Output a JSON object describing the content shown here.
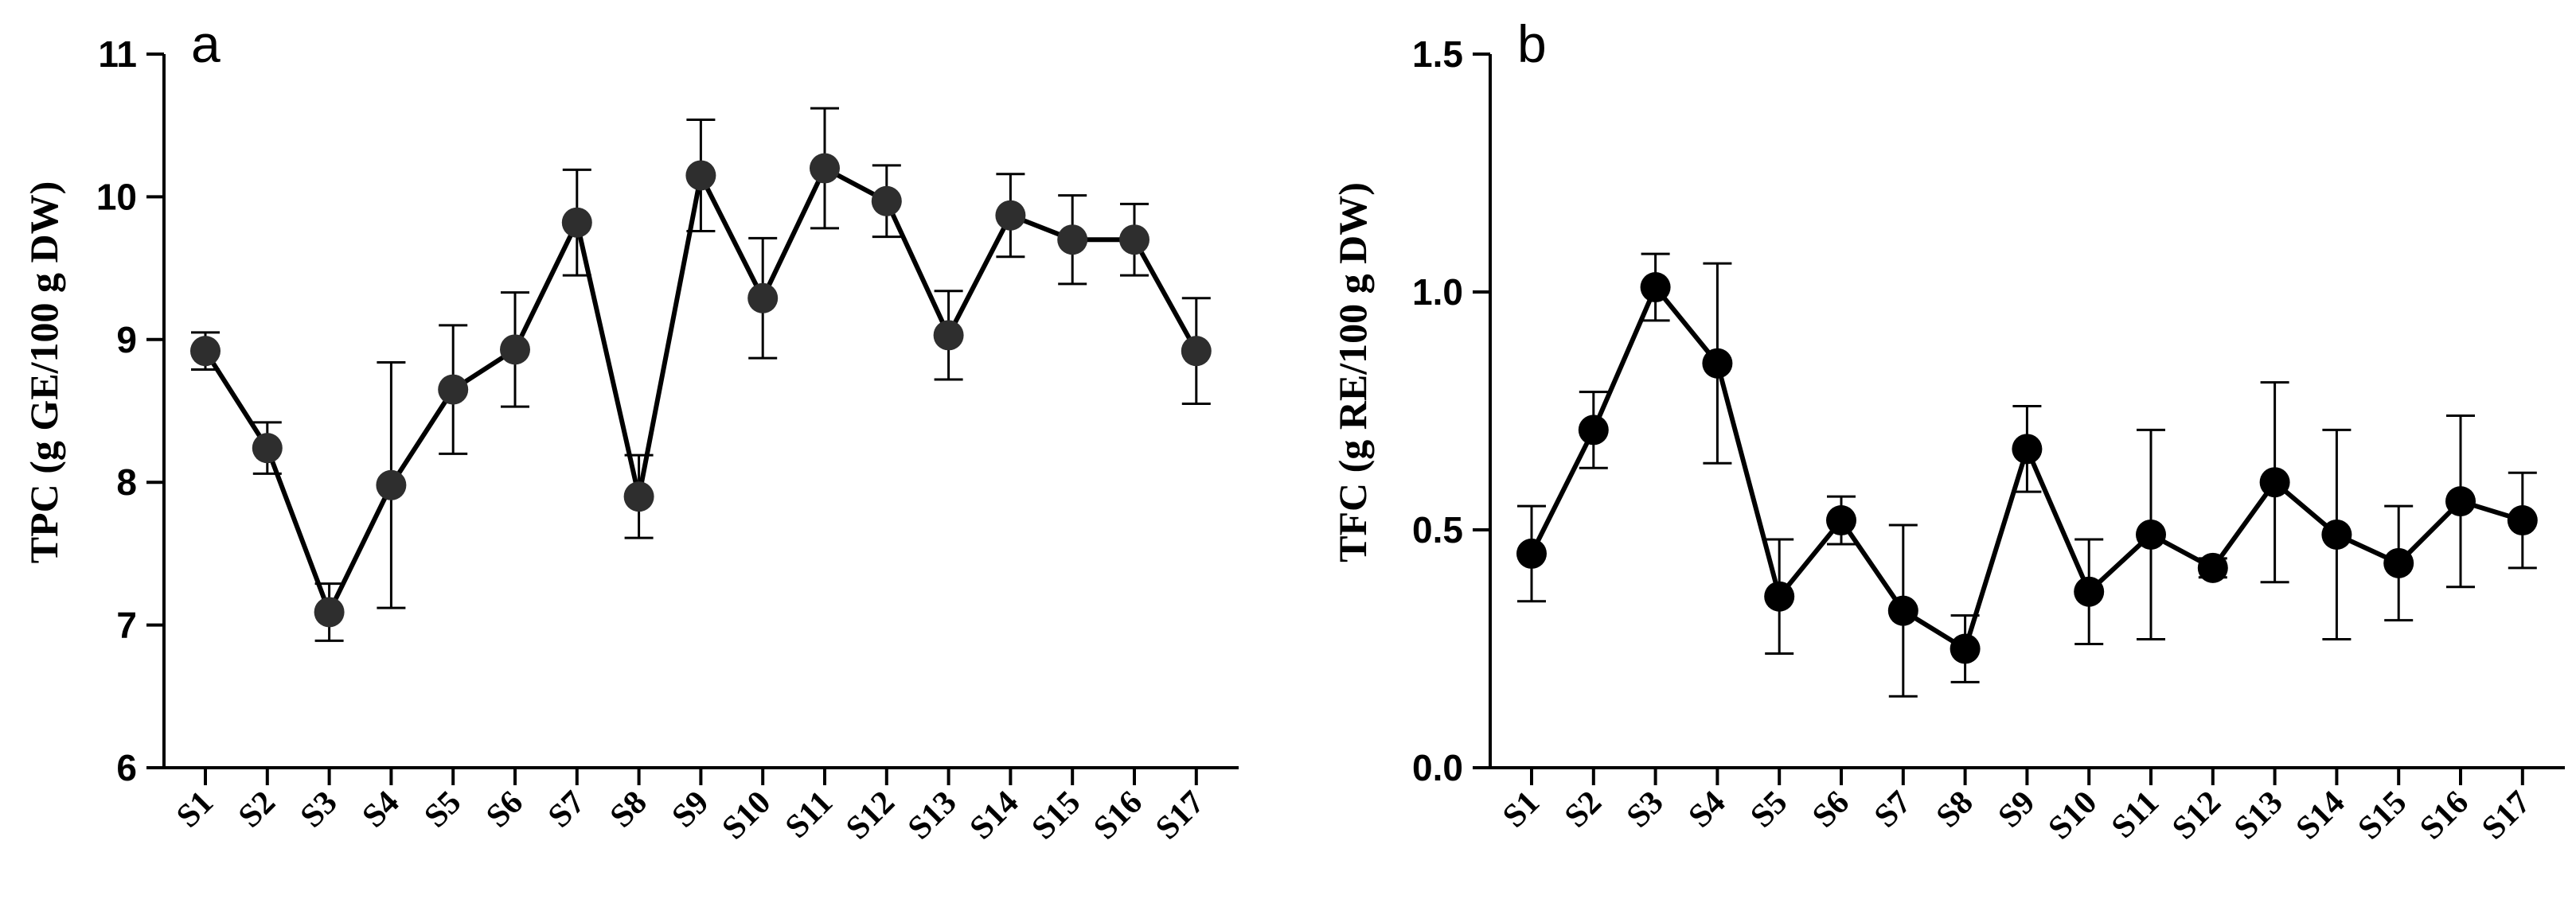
{
  "chart_data": [
    {
      "type": "line",
      "panel_label": "a",
      "title": "",
      "xlabel": "",
      "ylabel": "TPC (g GE/100 g DW)",
      "ylim": [
        6,
        11
      ],
      "yticks": [
        "6",
        "7",
        "8",
        "9",
        "10",
        "11"
      ],
      "categories": [
        "S1",
        "S2",
        "S3",
        "S4",
        "S5",
        "S6",
        "S7",
        "S8",
        "S9",
        "S10",
        "S11",
        "S12",
        "S13",
        "S14",
        "S15",
        "S16",
        "S17"
      ],
      "values": [
        8.92,
        8.24,
        7.09,
        7.98,
        8.65,
        8.93,
        9.82,
        7.9,
        10.15,
        9.29,
        10.2,
        9.97,
        9.03,
        9.87,
        9.7,
        9.7,
        8.92
      ],
      "errors": [
        0.13,
        0.18,
        0.2,
        0.86,
        0.45,
        0.4,
        0.37,
        0.29,
        0.39,
        0.42,
        0.42,
        0.25,
        0.31,
        0.29,
        0.31,
        0.25,
        0.37
      ],
      "colors": {
        "line": "#000000",
        "marker": "#2e2e2e"
      }
    },
    {
      "type": "line",
      "panel_label": "b",
      "title": "",
      "xlabel": "",
      "ylabel": "TFC (g RE/100 g DW)",
      "ylim": [
        0.0,
        1.5
      ],
      "yticks": [
        "0.0",
        "0.5",
        "1.0",
        "1.5"
      ],
      "categories": [
        "S1",
        "S2",
        "S3",
        "S4",
        "S5",
        "S6",
        "S7",
        "S8",
        "S9",
        "S10",
        "S11",
        "S12",
        "S13",
        "S14",
        "S15",
        "S16",
        "S17"
      ],
      "values": [
        0.45,
        0.71,
        1.01,
        0.85,
        0.36,
        0.52,
        0.33,
        0.25,
        0.67,
        0.37,
        0.49,
        0.42,
        0.6,
        0.49,
        0.43,
        0.56,
        0.52
      ],
      "errors": [
        0.1,
        0.08,
        0.07,
        0.21,
        0.12,
        0.05,
        0.18,
        0.07,
        0.09,
        0.11,
        0.22,
        0.02,
        0.21,
        0.22,
        0.12,
        0.18,
        0.1
      ],
      "colors": {
        "line": "#000000",
        "marker": "#000000"
      }
    }
  ]
}
